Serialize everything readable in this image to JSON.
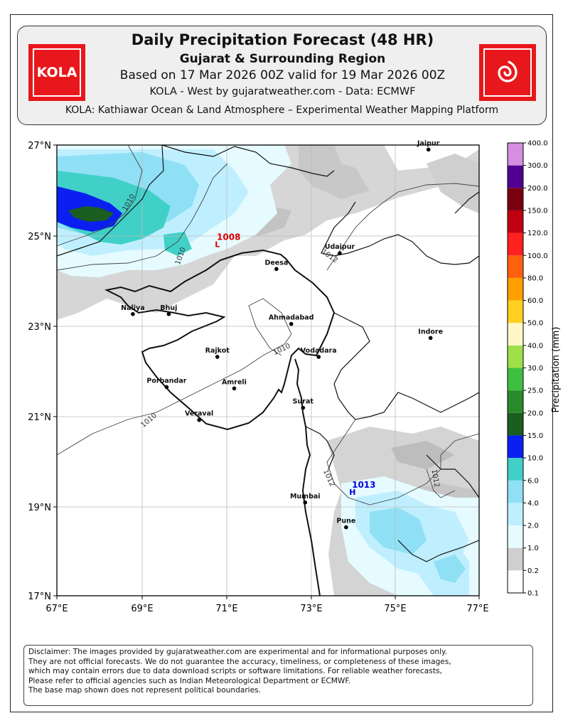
{
  "header": {
    "title": "Daily Precipitation Forecast (48 HR)",
    "subtitle": "Gujarat & Surrounding Region",
    "valid_line": "Based on 17 Mar 2026 00Z valid for 19 Mar 2026 00Z",
    "source_line": "KOLA - West by gujaratweather.com  -  Data: ECMWF",
    "platform_line": "KOLA: Kathiawar Ocean & Land Atmosphere – Experimental Weather Mapping Platform",
    "logo_text": "KOLA",
    "logo_color": "#e8171b"
  },
  "map": {
    "lat_labels": [
      "27°N",
      "25°N",
      "23°N",
      "21°N",
      "19°N",
      "17°N"
    ],
    "lon_labels": [
      "67°E",
      "69°E",
      "71°E",
      "73°E",
      "75°E",
      "77°E"
    ],
    "cities": [
      {
        "name": "Jaipur",
        "lon": 75.8,
        "lat": 26.9
      },
      {
        "name": "Udaipur",
        "lon": 73.7,
        "lat": 24.6
      },
      {
        "name": "Deesa",
        "lon": 72.2,
        "lat": 24.25
      },
      {
        "name": "Naliya",
        "lon": 68.8,
        "lat": 23.25
      },
      {
        "name": "Bhuj",
        "lon": 69.65,
        "lat": 23.25
      },
      {
        "name": "Ahmadabad",
        "lon": 72.55,
        "lat": 23.03
      },
      {
        "name": "Indore",
        "lon": 75.85,
        "lat": 22.72
      },
      {
        "name": "Rajkot",
        "lon": 70.8,
        "lat": 22.3
      },
      {
        "name": "Vodadara",
        "lon": 73.2,
        "lat": 22.3
      },
      {
        "name": "Porbandar",
        "lon": 69.6,
        "lat": 21.63
      },
      {
        "name": "Amreli",
        "lon": 71.2,
        "lat": 21.6
      },
      {
        "name": "Surat",
        "lon": 72.83,
        "lat": 21.17
      },
      {
        "name": "Veraval",
        "lon": 70.37,
        "lat": 20.9
      },
      {
        "name": "Mumbai",
        "lon": 72.88,
        "lat": 19.07
      },
      {
        "name": "Pune",
        "lon": 73.85,
        "lat": 18.52
      }
    ],
    "isobar_labels": [
      "1010",
      "1010",
      "1012",
      "1010",
      "1010",
      "1012",
      "1012"
    ],
    "pressure_centers": [
      {
        "label": "1008",
        "marker": "L",
        "color": "#e00000",
        "lon": 70.8,
        "lat": 24.8
      },
      {
        "label": "1013",
        "marker": "H",
        "color": "#0000dd",
        "lon": 74.0,
        "lat": 19.3
      }
    ]
  },
  "colorbar": {
    "label": "Precipitation (mm)",
    "levels": [
      "0.1",
      "0.2",
      "1.0",
      "2.0",
      "4.0",
      "6.0",
      "10.0",
      "15.0",
      "20.0",
      "25.0",
      "30.0",
      "40.0",
      "50.0",
      "60.0",
      "80.0",
      "100.0",
      "120.0",
      "150.0",
      "200.0",
      "300.0",
      "400.0"
    ],
    "colors": [
      "#ffffff",
      "#cfcfcf",
      "#e6fbff",
      "#bfefff",
      "#8fe0f5",
      "#40d0c8",
      "#0a1ff0",
      "#1a5e20",
      "#2a8a2a",
      "#3fbf3f",
      "#9fe04a",
      "#fff7c8",
      "#ffd020",
      "#ffa000",
      "#ff6010",
      "#ff2020",
      "#c00010",
      "#7a0010",
      "#500090",
      "#d58ee0",
      "#efd3f3"
    ]
  },
  "disclaimer": [
    "Disclaimer: The images provided by gujaratweather.com are experimental and for informational purposes only.",
    "They are not official forecasts. We do not guarantee the accuracy, timeliness, or completeness of these images,",
    "which may contain errors due to data download scripts or software limitations. For reliable weather forecasts,",
    "Please refer to official agencies such as Indian Meteorological Department or ECMWF.",
    "The base map shown does not represent political boundaries."
  ]
}
